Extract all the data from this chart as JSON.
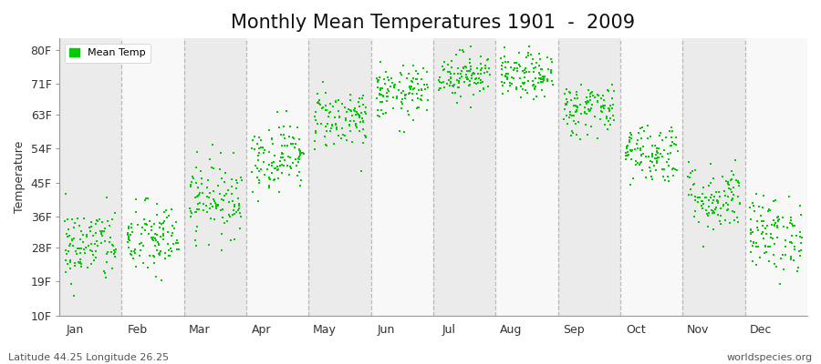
{
  "title": "Monthly Mean Temperatures 1901  -  2009",
  "ylabel": "Temperature",
  "xlabel_months": [
    "Jan",
    "Feb",
    "Mar",
    "Apr",
    "May",
    "Jun",
    "Jul",
    "Aug",
    "Sep",
    "Oct",
    "Nov",
    "Dec"
  ],
  "yticks": [
    10,
    19,
    28,
    36,
    45,
    54,
    63,
    71,
    80
  ],
  "ytick_labels": [
    "10F",
    "19F",
    "28F",
    "36F",
    "45F",
    "54F",
    "63F",
    "71F",
    "80F"
  ],
  "ylim": [
    10,
    83
  ],
  "dot_color": "#00cc00",
  "dot_size": 3,
  "background_color": "#ffffff",
  "band_color_odd": "#ebebeb",
  "band_color_even": "#f8f8f8",
  "dashed_line_color": "#aaaaaa",
  "legend_label": "Mean Temp",
  "subtitle_left": "Latitude 44.25 Longitude 26.25",
  "subtitle_right": "worldspecies.org",
  "monthly_mean_F": [
    28.5,
    30.0,
    41.0,
    52.0,
    62.0,
    68.5,
    73.5,
    73.0,
    64.5,
    53.0,
    41.0,
    31.5
  ],
  "monthly_std_F": [
    5.0,
    5.0,
    5.0,
    4.5,
    4.0,
    3.5,
    3.0,
    3.0,
    3.5,
    4.0,
    4.5,
    5.0
  ],
  "n_years": 109,
  "title_fontsize": 15,
  "axis_fontsize": 9,
  "legend_fontsize": 8,
  "subtitle_fontsize": 8
}
